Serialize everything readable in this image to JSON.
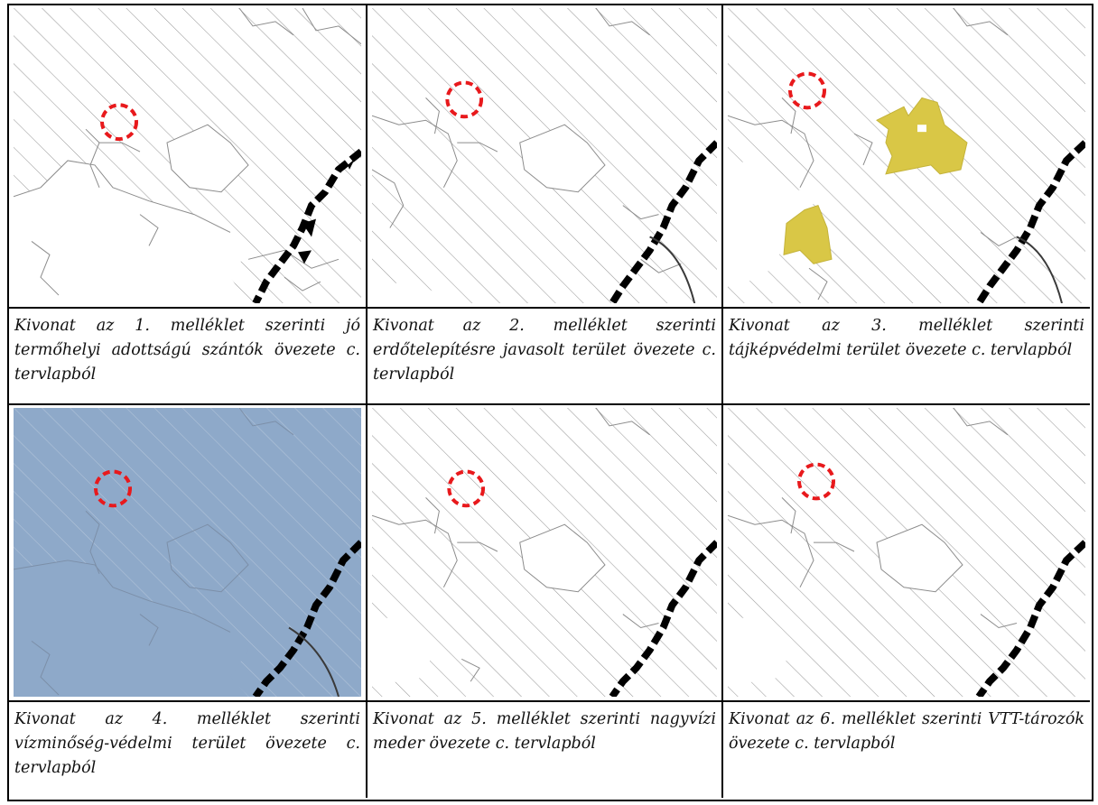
{
  "panels": [
    {
      "id": 1,
      "fill": "none",
      "caption": "Kivonat az 1. melléklet szerinti jó termőhelyi adottságú szántók övezete c. tervlapból"
    },
    {
      "id": 2,
      "fill": "none",
      "caption": "Kivonat az 2. melléklet szerinti erdőtelepítésre javasolt terület övezete c. tervlapból"
    },
    {
      "id": 3,
      "fill": "yellow-patches",
      "caption": "Kivonat az 3. melléklet szerinti tájképvédelmi terület övezete c. tervlapból"
    },
    {
      "id": 4,
      "fill": "blue-background",
      "caption": "Kivonat az 4. melléklet szerinti vízminőség-védelmi terület övezete c. tervlapból"
    },
    {
      "id": 5,
      "fill": "none",
      "caption": "Kivonat az 5. melléklet szerinti nagyvízi meder övezete c. tervlapból"
    },
    {
      "id": 6,
      "fill": "none",
      "caption": "Kivonat az 6. melléklet szerinti VTT-tározók övezete c. tervlapból"
    }
  ],
  "colors": {
    "marker": "#e8191c",
    "hatch": "#9a9a9a",
    "outline": "#8c8c8c",
    "border_line": "#000000",
    "zone_yellow": "#d9c746",
    "water_blue": "#8ea9c9",
    "river": "#3a3a3a"
  },
  "icons": {
    "marker": "red-dashed-circle-icon",
    "boundary": "dashed-administrative-boundary"
  }
}
